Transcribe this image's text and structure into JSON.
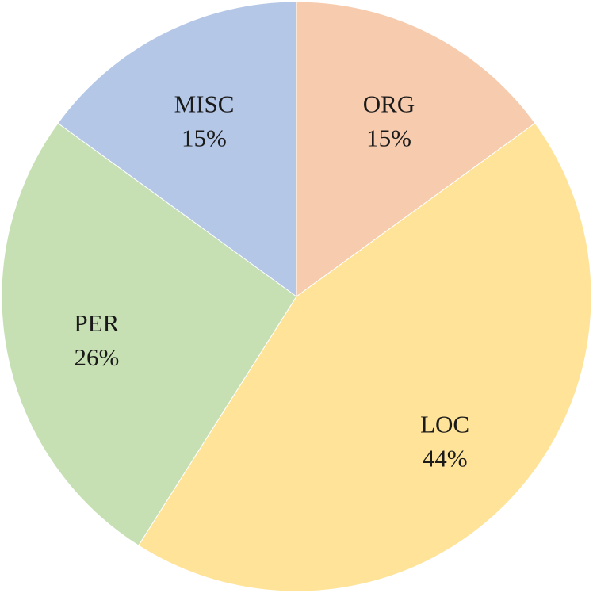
{
  "chart_data": {
    "type": "pie",
    "title": "",
    "start_angle_deg": 0,
    "direction": "clockwise",
    "slices": [
      {
        "label": "ORG",
        "value": 15,
        "percent_label": "15%",
        "color": "#F7CBAD"
      },
      {
        "label": "LOC",
        "value": 44,
        "percent_label": "44%",
        "color": "#FEE398"
      },
      {
        "label": "PER",
        "value": 26,
        "percent_label": "26%",
        "color": "#C6E0B4"
      },
      {
        "label": "MISC",
        "value": 15,
        "percent_label": "15%",
        "color": "#B4C7E7"
      }
    ],
    "legend": "none"
  }
}
